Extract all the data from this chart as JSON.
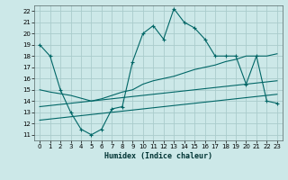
{
  "title": "",
  "xlabel": "Humidex (Indice chaleur)",
  "ylabel": "",
  "xlim": [
    -0.5,
    23.5
  ],
  "ylim": [
    10.5,
    22.5
  ],
  "xticks": [
    0,
    1,
    2,
    3,
    4,
    5,
    6,
    7,
    8,
    9,
    10,
    11,
    12,
    13,
    14,
    15,
    16,
    17,
    18,
    19,
    20,
    21,
    22,
    23
  ],
  "yticks": [
    11,
    12,
    13,
    14,
    15,
    16,
    17,
    18,
    19,
    20,
    21,
    22
  ],
  "background_color": "#cce8e8",
  "grid_color": "#aacccc",
  "line_color": "#006666",
  "line1_x": [
    0,
    1,
    2,
    3,
    4,
    5,
    6,
    7,
    8,
    9,
    10,
    11,
    12,
    13,
    14,
    15,
    16,
    17,
    18,
    19,
    20,
    21,
    22,
    23
  ],
  "line1_y": [
    19,
    18,
    15,
    13,
    11.5,
    11,
    11.5,
    13.3,
    13.5,
    17.5,
    20,
    20.7,
    19.5,
    22.2,
    21,
    20.5,
    19.5,
    18,
    18,
    18,
    15.5,
    18,
    14,
    13.8
  ],
  "line2_x": [
    0,
    1,
    3,
    5,
    6,
    7,
    8,
    9,
    10,
    11,
    12,
    13,
    14,
    15,
    16,
    17,
    18,
    19,
    20,
    21,
    22,
    23
  ],
  "line2_y": [
    15,
    14.8,
    14.5,
    14.0,
    14.2,
    14.5,
    14.8,
    15.0,
    15.5,
    15.8,
    16.0,
    16.2,
    16.5,
    16.8,
    17.0,
    17.2,
    17.5,
    17.7,
    18.0,
    18.0,
    18.0,
    18.2
  ],
  "line3_x": [
    0,
    1,
    2,
    3,
    4,
    5,
    6,
    7,
    8,
    9,
    10,
    11,
    12,
    13,
    14,
    15,
    16,
    17,
    18,
    19,
    20,
    21,
    22,
    23
  ],
  "line3_y": [
    12.3,
    12.4,
    12.5,
    12.6,
    12.7,
    12.8,
    12.9,
    13.0,
    13.1,
    13.2,
    13.3,
    13.4,
    13.5,
    13.6,
    13.7,
    13.8,
    13.9,
    14.0,
    14.1,
    14.2,
    14.3,
    14.4,
    14.5,
    14.6
  ],
  "line4_x": [
    0,
    1,
    2,
    3,
    4,
    5,
    6,
    7,
    8,
    9,
    10,
    11,
    12,
    13,
    14,
    15,
    16,
    17,
    18,
    19,
    20,
    21,
    22,
    23
  ],
  "line4_y": [
    13.5,
    13.6,
    13.7,
    13.8,
    13.9,
    14.0,
    14.1,
    14.2,
    14.3,
    14.4,
    14.5,
    14.6,
    14.7,
    14.8,
    14.9,
    15.0,
    15.1,
    15.2,
    15.3,
    15.4,
    15.5,
    15.6,
    15.7,
    15.8
  ]
}
